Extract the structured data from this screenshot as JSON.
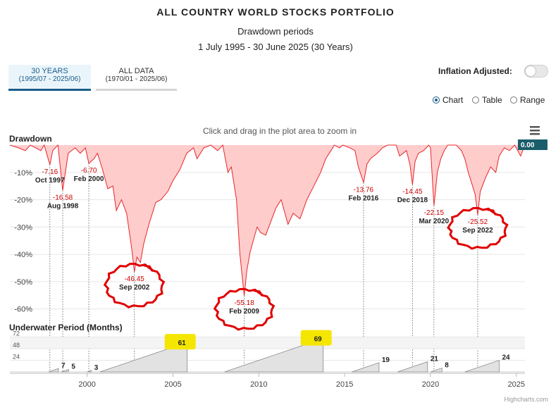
{
  "header": {
    "title": "ALL COUNTRY WORLD STOCKS PORTFOLIO",
    "subtitle": "Drawdown periods",
    "date_range": "1 July 1995 - 30 June 2025 (30 Years)"
  },
  "tabs": [
    {
      "label": "30 YEARS",
      "sub": "(1995/07 - 2025/06)",
      "active": true
    },
    {
      "label": "ALL DATA",
      "sub": "(1970/01 - 2025/06)",
      "active": false
    }
  ],
  "inflation": {
    "label": "Inflation Adjusted:",
    "on": false
  },
  "view_options": [
    {
      "label": "Chart",
      "selected": true
    },
    {
      "label": "Table",
      "selected": false
    },
    {
      "label": "Range",
      "selected": false
    }
  ],
  "zoom_hint": "Click and drag in the plot area to zoom in",
  "credits": "Highcharts.com",
  "chart_data": {
    "type": "area",
    "x_range": [
      1995.5,
      2025.5
    ],
    "x_ticks": [
      "2000",
      "2005",
      "2010",
      "2015",
      "2020",
      "2025"
    ],
    "drawdown": {
      "title": "Drawdown",
      "color": "#e8262b",
      "fill": "#ffcccc",
      "ylim": [
        -65,
        0
      ],
      "y_ticks": [
        "-10%",
        "-20%",
        "-30%",
        "-40%",
        "-50%",
        "-60%"
      ],
      "current_value": "0.00",
      "series": [
        [
          1995.5,
          0
        ],
        [
          1996.0,
          -1
        ],
        [
          1996.4,
          -2
        ],
        [
          1996.7,
          0
        ],
        [
          1997.0,
          -1
        ],
        [
          1997.3,
          -2
        ],
        [
          1997.5,
          0
        ],
        [
          1997.83,
          -7.16
        ],
        [
          1998.0,
          -2
        ],
        [
          1998.3,
          0
        ],
        [
          1998.58,
          -16.58
        ],
        [
          1998.9,
          -3
        ],
        [
          1999.3,
          -1
        ],
        [
          1999.6,
          -3
        ],
        [
          1999.9,
          -1
        ],
        [
          2000.1,
          -6.7
        ],
        [
          2000.4,
          -5
        ],
        [
          2000.6,
          -3
        ],
        [
          2000.9,
          -9
        ],
        [
          2001.2,
          -16
        ],
        [
          2001.5,
          -15
        ],
        [
          2001.7,
          -24
        ],
        [
          2002.0,
          -20
        ],
        [
          2002.3,
          -25
        ],
        [
          2002.6,
          -38
        ],
        [
          2002.75,
          -46.45
        ],
        [
          2002.9,
          -41
        ],
        [
          2003.1,
          -43
        ],
        [
          2003.3,
          -36
        ],
        [
          2003.6,
          -29
        ],
        [
          2004.0,
          -21
        ],
        [
          2004.3,
          -20
        ],
        [
          2004.7,
          -17
        ],
        [
          2005.0,
          -13
        ],
        [
          2005.4,
          -9
        ],
        [
          2005.8,
          -3
        ],
        [
          2006.2,
          -1
        ],
        [
          2006.4,
          -5
        ],
        [
          2006.8,
          -1
        ],
        [
          2007.2,
          0
        ],
        [
          2007.6,
          -2
        ],
        [
          2007.9,
          0
        ],
        [
          2008.2,
          -10
        ],
        [
          2008.4,
          -8
        ],
        [
          2008.7,
          -20
        ],
        [
          2008.9,
          -40
        ],
        [
          2009.15,
          -55.18
        ],
        [
          2009.3,
          -46
        ],
        [
          2009.5,
          -39
        ],
        [
          2009.9,
          -30
        ],
        [
          2010.1,
          -32
        ],
        [
          2010.4,
          -33
        ],
        [
          2010.7,
          -28
        ],
        [
          2011.0,
          -23
        ],
        [
          2011.3,
          -20
        ],
        [
          2011.7,
          -29
        ],
        [
          2012.0,
          -25
        ],
        [
          2012.4,
          -27
        ],
        [
          2012.8,
          -20
        ],
        [
          2013.2,
          -15
        ],
        [
          2013.6,
          -10
        ],
        [
          2013.9,
          -5
        ],
        [
          2014.2,
          -2
        ],
        [
          2014.4,
          0
        ],
        [
          2014.7,
          -1
        ],
        [
          2014.9,
          0
        ],
        [
          2015.3,
          -1
        ],
        [
          2015.6,
          -2
        ],
        [
          2015.8,
          -8
        ],
        [
          2016.1,
          -13.76
        ],
        [
          2016.3,
          -7
        ],
        [
          2016.5,
          -5
        ],
        [
          2016.9,
          -3
        ],
        [
          2017.2,
          -1
        ],
        [
          2017.5,
          0
        ],
        [
          2018.0,
          0
        ],
        [
          2018.2,
          -4
        ],
        [
          2018.6,
          -2
        ],
        [
          2018.8,
          -7
        ],
        [
          2018.95,
          -14.45
        ],
        [
          2019.1,
          -6
        ],
        [
          2019.3,
          -3
        ],
        [
          2019.6,
          -2
        ],
        [
          2019.9,
          0
        ],
        [
          2020.0,
          -1
        ],
        [
          2020.2,
          -22.15
        ],
        [
          2020.4,
          -10
        ],
        [
          2020.6,
          -5
        ],
        [
          2020.8,
          -2
        ],
        [
          2021.0,
          0
        ],
        [
          2021.5,
          0
        ],
        [
          2021.8,
          -2
        ],
        [
          2022.0,
          -5
        ],
        [
          2022.2,
          -10
        ],
        [
          2022.45,
          -15
        ],
        [
          2022.6,
          -18
        ],
        [
          2022.75,
          -25.52
        ],
        [
          2022.9,
          -17
        ],
        [
          2023.2,
          -12
        ],
        [
          2023.5,
          -8
        ],
        [
          2023.8,
          -10
        ],
        [
          2024.0,
          -4
        ],
        [
          2024.3,
          -1
        ],
        [
          2024.6,
          -2
        ],
        [
          2024.9,
          0
        ],
        [
          2025.25,
          -4
        ],
        [
          2025.5,
          0
        ]
      ],
      "annotations": [
        {
          "x": 1997.83,
          "value": "-7.16",
          "date": "Oct 1997"
        },
        {
          "x": 1998.58,
          "value": "-16.58",
          "date": "Aug 1998"
        },
        {
          "x": 2000.1,
          "value": "-6.70",
          "date": "Feb 2000"
        },
        {
          "x": 2002.75,
          "value": "-46.45",
          "date": "Sep 2002",
          "circled": true
        },
        {
          "x": 2009.15,
          "value": "-55.18",
          "date": "Feb 2009",
          "circled": true
        },
        {
          "x": 2016.1,
          "value": "-13.76",
          "date": "Feb 2016"
        },
        {
          "x": 2018.95,
          "value": "-14.45",
          "date": "Dec 2018"
        },
        {
          "x": 2020.2,
          "value": "-22.15",
          "date": "Mar 2020"
        },
        {
          "x": 2022.75,
          "value": "-25.52",
          "date": "Sep 2022",
          "circled": true
        }
      ]
    },
    "underwater": {
      "title": "Underwater Period (Months)",
      "ylim": [
        0,
        80
      ],
      "y_ticks": [
        "72",
        "48",
        "24"
      ],
      "periods": [
        {
          "start": 1997.75,
          "end": 1998.33,
          "months": 7
        },
        {
          "start": 1998.5,
          "end": 1998.92,
          "months": 5
        },
        {
          "start": 2000.0,
          "end": 2000.25,
          "months": 3
        },
        {
          "start": 2000.75,
          "end": 2005.83,
          "months": 61,
          "highlight": true
        },
        {
          "start": 2008.0,
          "end": 2013.75,
          "months": 69,
          "highlight": true
        },
        {
          "start": 2015.42,
          "end": 2017.0,
          "months": 19
        },
        {
          "start": 2018.08,
          "end": 2019.83,
          "months": 21
        },
        {
          "start": 2020.0,
          "end": 2020.67,
          "months": 8
        },
        {
          "start": 2022.0,
          "end": 2024.0,
          "months": 24
        }
      ]
    }
  }
}
